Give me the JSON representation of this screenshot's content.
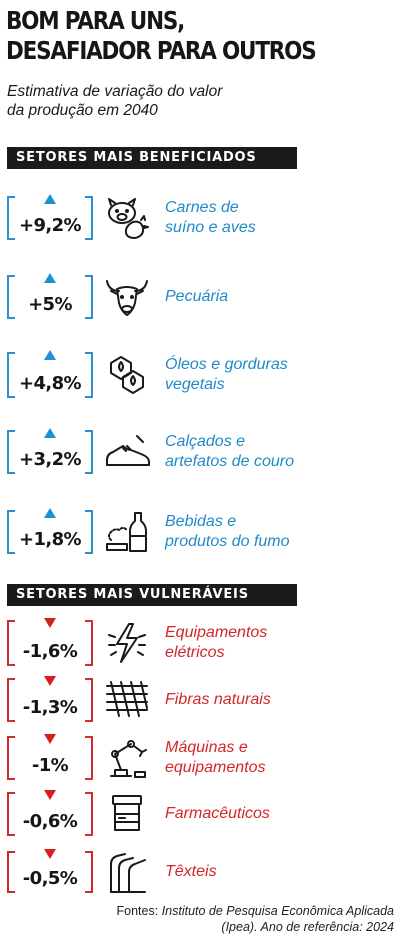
{
  "title_line1": "BOM PARA UNS,",
  "title_line2": "DESAFIADOR PARA OUTROS",
  "subtitle_line1": "Estimativa de variação do valor",
  "subtitle_line2": "da produção em 2040",
  "section_beneficiados": "SETORES MAIS BENEFICIADOS",
  "section_vulneraveis": "SETORES MAIS VULNERÁVEIS",
  "colors": {
    "positive": "#1f8ac8",
    "negative": "#d3262a",
    "band": "#1b1b1b"
  },
  "chart_data": {
    "type": "table",
    "unit": "%",
    "beneficiados": [
      {
        "sector_line1": "Carnes de",
        "sector_line2": "suíno e aves",
        "value": 9.2,
        "value_label": "+9,2%",
        "icon": "pig-chicken-icon"
      },
      {
        "sector_line1": "Pecuária",
        "sector_line2": "",
        "value": 5,
        "value_label": "+5%",
        "icon": "cattle-head-icon"
      },
      {
        "sector_line1": "Óleos e gorduras",
        "sector_line2": "vegetais",
        "value": 4.8,
        "value_label": "+4,8%",
        "icon": "oil-drops-icon"
      },
      {
        "sector_line1": "Calçados e",
        "sector_line2": "artefatos de couro",
        "value": 3.2,
        "value_label": "+3,2%",
        "icon": "sneaker-icon"
      },
      {
        "sector_line1": "Bebidas e",
        "sector_line2": "produtos do fumo",
        "value": 1.8,
        "value_label": "+1,8%",
        "icon": "bottle-smoke-icon"
      }
    ],
    "vulneraveis": [
      {
        "sector_line1": "Equipamentos",
        "sector_line2": "elétricos",
        "value": -1.6,
        "value_label": "-1,6%",
        "icon": "electric-bolt-icon"
      },
      {
        "sector_line1": "Fibras naturais",
        "sector_line2": "",
        "value": -1.3,
        "value_label": "-1,3%",
        "icon": "fiber-weave-icon"
      },
      {
        "sector_line1": "Máquinas e",
        "sector_line2": "equipamentos",
        "value": -1,
        "value_label": "-1%",
        "icon": "robot-arm-icon"
      },
      {
        "sector_line1": "Farmacêuticos",
        "sector_line2": "",
        "value": -0.6,
        "value_label": "-0,6%",
        "icon": "pill-bottle-icon"
      },
      {
        "sector_line1": "Têxteis",
        "sector_line2": "",
        "value": -0.5,
        "value_label": "-0,5%",
        "icon": "textile-roll-icon"
      }
    ]
  },
  "source_label": "Fontes:",
  "source_text": "Instituto de Pesquisa Econômica Aplicada (Ipea). Ano de referência: 2024"
}
